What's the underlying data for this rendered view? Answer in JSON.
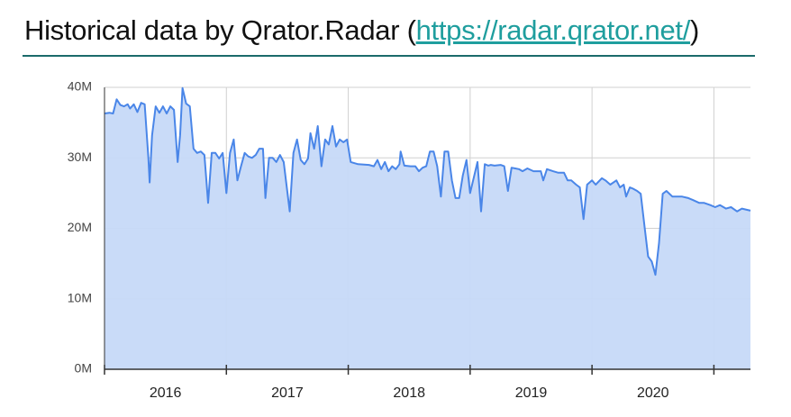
{
  "chart_data": {
    "type": "area",
    "title": "Historical data by Qrator.Radar (",
    "title_link": "https://radar.qrator.net/",
    "title_suffix": ")",
    "color": "#4a86e8",
    "fill": "#c6d9f8",
    "grid": true,
    "xlim": [
      2016,
      2021.3
    ],
    "xticks": [
      {
        "value": 2016,
        "label": "2016"
      },
      {
        "value": 2017,
        "label": "2017"
      },
      {
        "value": 2018,
        "label": "2018"
      },
      {
        "value": 2019,
        "label": "2019"
      },
      {
        "value": 2020,
        "label": "2020"
      },
      {
        "value": 2021,
        "label": null
      }
    ],
    "ylim": [
      0,
      40
    ],
    "yticks": [
      {
        "value": 0,
        "label": "0M"
      },
      {
        "value": 10,
        "label": "10M"
      },
      {
        "value": 20,
        "label": "20M"
      },
      {
        "value": 30,
        "label": "30M"
      },
      {
        "value": 40,
        "label": "40M"
      }
    ],
    "x": [
      2016.0,
      2016.04,
      2016.07,
      2016.1,
      2016.13,
      2016.16,
      2016.19,
      2016.21,
      2016.24,
      2016.27,
      2016.3,
      2016.33,
      2016.36,
      2016.37,
      2016.39,
      2016.42,
      2016.45,
      2016.48,
      2016.51,
      2016.54,
      2016.57,
      2016.6,
      2016.62,
      2016.64,
      2016.67,
      2016.7,
      2016.73,
      2016.76,
      2016.79,
      2016.82,
      2016.85,
      2016.88,
      2016.91,
      2016.94,
      2016.97,
      2017.0,
      2017.03,
      2017.06,
      2017.09,
      2017.12,
      2017.15,
      2017.18,
      2017.21,
      2017.24,
      2017.27,
      2017.3,
      2017.32,
      2017.35,
      2017.38,
      2017.41,
      2017.44,
      2017.47,
      2017.52,
      2017.55,
      2017.58,
      2017.61,
      2017.64,
      2017.67,
      2017.69,
      2017.72,
      2017.75,
      2017.78,
      2017.81,
      2017.84,
      2017.87,
      2017.9,
      2017.93,
      2017.96,
      2017.99,
      2018.02,
      2018.08,
      2018.17,
      2018.21,
      2018.24,
      2018.27,
      2018.3,
      2018.33,
      2018.36,
      2018.39,
      2018.42,
      2018.43,
      2018.46,
      2018.51,
      2018.55,
      2018.58,
      2018.61,
      2018.64,
      2018.67,
      2018.7,
      2018.73,
      2018.76,
      2018.79,
      2018.82,
      2018.85,
      2018.88,
      2018.91,
      2018.94,
      2018.97,
      2019.0,
      2019.03,
      2019.06,
      2019.09,
      2019.12,
      2019.15,
      2019.17,
      2019.2,
      2019.25,
      2019.28,
      2019.31,
      2019.34,
      2019.37,
      2019.4,
      2019.43,
      2019.47,
      2019.52,
      2019.58,
      2019.6,
      2019.63,
      2019.68,
      2019.72,
      2019.77,
      2019.8,
      2019.83,
      2019.87,
      2019.9,
      2019.93,
      2019.96,
      2020.0,
      2020.03,
      2020.08,
      2020.11,
      2020.15,
      2020.2,
      2020.23,
      2020.26,
      2020.28,
      2020.31,
      2020.34,
      2020.37,
      2020.4,
      2020.43,
      2020.46,
      2020.49,
      2020.52,
      2020.55,
      2020.58,
      2020.61,
      2020.66,
      2020.7,
      2020.74,
      2020.79,
      2020.83,
      2020.88,
      2020.92,
      2020.97,
      2021.01,
      2021.05,
      2021.1,
      2021.14,
      2021.19,
      2021.23,
      2021.3
    ],
    "values": [
      36.3,
      36.4,
      36.3,
      38.3,
      37.5,
      37.3,
      37.6,
      37.0,
      37.6,
      36.5,
      37.8,
      37.6,
      30.0,
      26.5,
      33.2,
      37.3,
      36.4,
      37.3,
      36.3,
      37.3,
      36.8,
      29.4,
      33.2,
      39.9,
      37.7,
      37.3,
      31.3,
      30.7,
      30.9,
      30.4,
      23.6,
      30.7,
      30.7,
      29.9,
      30.7,
      25.0,
      30.7,
      32.6,
      26.8,
      28.8,
      30.7,
      30.2,
      30.0,
      30.4,
      31.3,
      31.3,
      24.3,
      30.0,
      30.0,
      29.4,
      30.4,
      29.4,
      22.4,
      30.7,
      32.6,
      29.7,
      29.1,
      29.9,
      33.5,
      31.3,
      34.5,
      28.8,
      32.6,
      31.9,
      34.5,
      31.6,
      32.6,
      32.2,
      32.6,
      29.4,
      29.1,
      29.0,
      28.8,
      29.7,
      28.4,
      29.4,
      28.1,
      28.8,
      28.4,
      29.1,
      30.9,
      28.9,
      28.8,
      28.8,
      28.1,
      28.6,
      28.8,
      30.9,
      30.9,
      28.8,
      24.5,
      30.9,
      30.9,
      26.8,
      24.3,
      24.3,
      27.5,
      29.7,
      25.0,
      27.2,
      29.4,
      22.4,
      29.1,
      28.9,
      29.0,
      28.9,
      29.0,
      28.8,
      25.3,
      28.6,
      28.5,
      28.4,
      28.1,
      28.5,
      28.1,
      28.1,
      26.8,
      28.4,
      28.1,
      27.9,
      27.9,
      26.8,
      26.8,
      26.2,
      25.8,
      21.3,
      26.2,
      26.8,
      26.2,
      27.1,
      26.8,
      26.2,
      26.8,
      25.8,
      26.2,
      24.5,
      25.8,
      25.6,
      25.3,
      24.9,
      20.4,
      16.0,
      15.3,
      13.4,
      17.9,
      24.9,
      25.3,
      24.5,
      24.5,
      24.5,
      24.3,
      24.0,
      23.6,
      23.6,
      23.3,
      23.0,
      23.3,
      22.8,
      23.0,
      22.4,
      22.8,
      22.5
    ]
  }
}
